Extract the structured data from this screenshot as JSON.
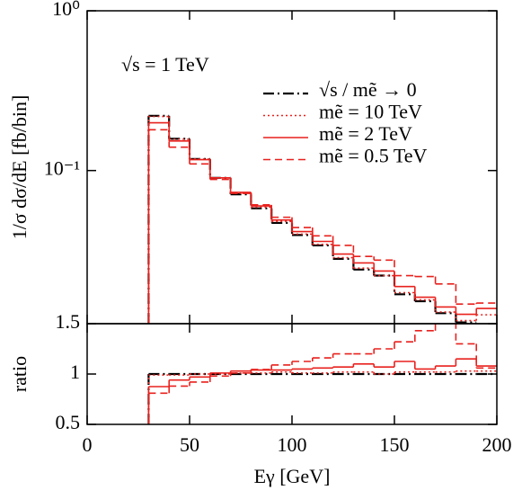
{
  "chart_data": [
    {
      "type": "histogram",
      "ylabel": "1/σ dσ/dE [fb/bin]",
      "annotation": "√s = 1 TeV",
      "log_y": true,
      "ylim": [
        0.011,
        1
      ],
      "yticks": [
        {
          "value": 1,
          "label": "10⁰"
        },
        {
          "value": 0.1,
          "label": "10⁻¹"
        }
      ],
      "legend": "upper right",
      "bins": [
        30,
        40,
        50,
        60,
        70,
        80,
        90,
        100,
        110,
        120,
        130,
        140,
        150,
        160,
        170,
        180,
        190,
        200
      ],
      "series": [
        {
          "name": "√s / mẽ → 0",
          "color": "#000000",
          "style": "dashdot",
          "values": [
            0.22,
            0.158,
            0.118,
            0.09,
            0.071,
            0.058,
            0.047,
            0.0395,
            0.034,
            0.028,
            0.024,
            0.022,
            0.0168,
            0.0152,
            0.0128,
            0.0112,
            null
          ]
        },
        {
          "name": "mẽ = 10 TeV",
          "color": "#e8211d",
          "style": "dotted",
          "values": [
            0.218,
            0.157,
            0.118,
            0.09,
            0.072,
            0.059,
            0.048,
            0.04,
            0.0345,
            0.0285,
            0.0245,
            0.022,
            0.0172,
            0.0155,
            0.013,
            0.0115,
            0.0125
          ]
        },
        {
          "name": "mẽ = 2 TeV",
          "color": "#e8211d",
          "style": "solid",
          "values": [
            0.199,
            0.153,
            0.117,
            0.09,
            0.073,
            0.06,
            0.049,
            0.0415,
            0.036,
            0.03,
            0.0264,
            0.0235,
            0.0188,
            0.0161,
            0.014,
            0.0126,
            0.0137
          ]
        },
        {
          "name": "mẽ = 0.5 TeV",
          "color": "#e8211d",
          "style": "dashed",
          "values": [
            0.18,
            0.14,
            0.11,
            0.088,
            0.072,
            0.061,
            0.051,
            0.044,
            0.039,
            0.034,
            0.029,
            0.0275,
            0.022,
            0.0217,
            0.0195,
            0.0146,
            0.0148
          ]
        }
      ]
    },
    {
      "type": "histogram",
      "ylabel": "ratio",
      "xlabel": "Eγ [GeV]",
      "log_y": false,
      "xlim": [
        0,
        200
      ],
      "xticks": [
        0,
        50,
        100,
        150,
        200
      ],
      "ylim": [
        0.5,
        1.5
      ],
      "yticks": [
        0.5,
        1,
        1.5
      ],
      "bins": [
        30,
        40,
        50,
        60,
        70,
        80,
        90,
        100,
        110,
        120,
        130,
        140,
        150,
        160,
        170,
        180,
        190,
        200
      ],
      "series": [
        {
          "color": "#000000",
          "style": "dashdot",
          "values": [
            1,
            1,
            1,
            1,
            1,
            1,
            1,
            1,
            1,
            1,
            1,
            1,
            1,
            1,
            1,
            1,
            1
          ]
        },
        {
          "color": "#e8211d",
          "style": "dotted",
          "values": [
            0.99,
            0.99,
            1,
            1,
            1.01,
            1.01,
            1.02,
            1.01,
            1.01,
            1.02,
            1.02,
            1.0,
            1.02,
            1.02,
            1.02,
            1.03,
            1.03
          ]
        },
        {
          "color": "#e8211d",
          "style": "solid",
          "values": [
            0.875,
            0.94,
            0.97,
            1.01,
            1.03,
            1.04,
            1.04,
            1.05,
            1.06,
            1.07,
            1.1,
            1.07,
            1.125,
            1.05,
            1.08,
            1.15,
            1.08
          ]
        },
        {
          "color": "#e8211d",
          "style": "dashed",
          "values": [
            0.81,
            0.88,
            0.92,
            0.98,
            1.01,
            1.045,
            1.09,
            1.125,
            1.16,
            1.2,
            1.2,
            1.25,
            1.32,
            1.43,
            1.52,
            1.3,
            1.06
          ]
        }
      ]
    }
  ]
}
